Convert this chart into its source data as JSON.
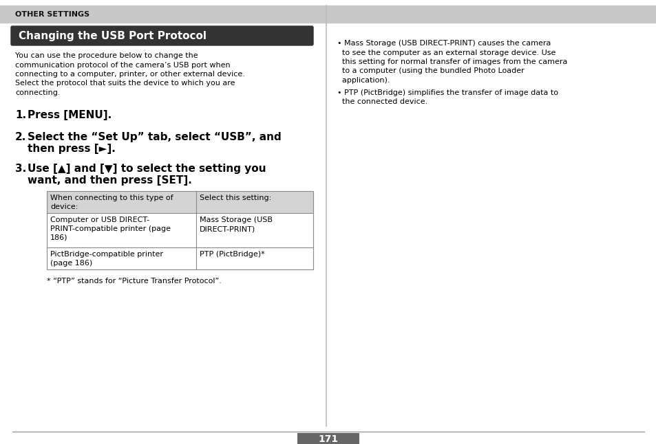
{
  "page_bg": "#ffffff",
  "header_bg": "#c8c8c8",
  "header_text": "OTHER SETTINGS",
  "title_bg": "#333333",
  "title_text": "Changing the USB Port Protocol",
  "title_text_color": "#ffffff",
  "intro_text": [
    "You can use the procedure below to change the",
    "communication protocol of the camera’s USB port when",
    "connecting to a computer, printer, or other external device.",
    "Select the protocol that suits the device to which you are",
    "connecting."
  ],
  "step1": "Press [MENU].",
  "step2_line1": "Select the “Set Up” tab, select “USB”, and",
  "step2_line2": "then press [►].",
  "step3_line1": "Use [▲] and [▼] to select the setting you",
  "step3_line2": "want, and then press [SET].",
  "table_header_col1": [
    "When connecting to this type of",
    "device:"
  ],
  "table_header_col2": [
    "Select this setting:"
  ],
  "table_row1_col1": [
    "Computer or USB DIRECT-",
    "PRINT-compatible printer (page",
    "186)"
  ],
  "table_row1_col2": [
    "Mass Storage (USB",
    "DIRECT-PRINT)"
  ],
  "table_row2_col1": [
    "PictBridge-compatible printer",
    "(page 186)"
  ],
  "table_row2_col2": [
    "PTP (PictBridge)*"
  ],
  "footnote": "* “PTP” stands for “Picture Transfer Protocol”.",
  "right_b1": [
    "• Mass Storage (USB DIRECT-PRINT) causes the camera",
    "  to see the computer as an external storage device. Use",
    "  this setting for normal transfer of images from the camera",
    "  to a computer (using the bundled Photo Loader",
    "  application)."
  ],
  "right_b2": [
    "• PTP (PictBridge) simplifies the transfer of image data to",
    "  the connected device."
  ],
  "page_number": "171",
  "table_header_bg": "#d4d4d4",
  "table_border": "#888888",
  "divider_color": "#bbbbbb"
}
